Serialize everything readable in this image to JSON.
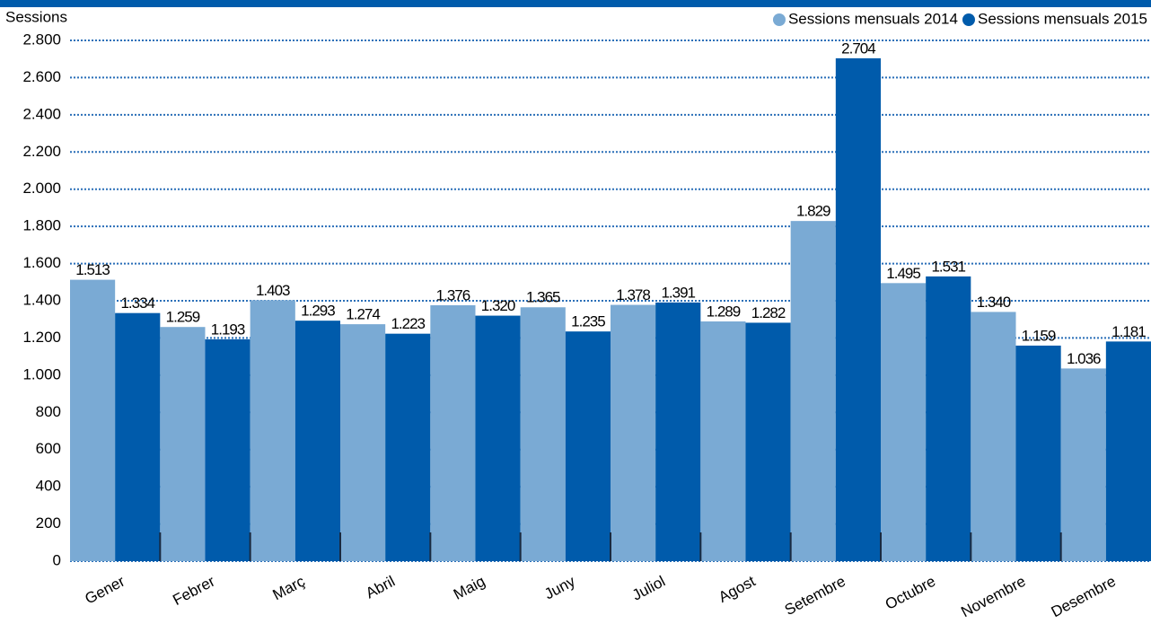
{
  "chart_data": {
    "type": "bar",
    "y_label": "Sessions",
    "categories": [
      "Gener",
      "Febrer",
      "Març",
      "Abril",
      "Maig",
      "Juny",
      "Juliol",
      "Agost",
      "Setembre",
      "Octubre",
      "Novembre",
      "Desembre"
    ],
    "series": [
      {
        "name": "Sessions mensuals 2014",
        "color": "#7aaad4",
        "values": [
          1513,
          1259,
          1403,
          1274,
          1376,
          1365,
          1378,
          1289,
          1829,
          1495,
          1340,
          1036
        ],
        "value_labels": [
          "1.513",
          "1.259",
          "1.403",
          "1.274",
          "1.376",
          "1.365",
          "1.378",
          "1.289",
          "1.829",
          "1.495",
          "1.340",
          "1.036"
        ]
      },
      {
        "name": "Sessions mensuals 2015",
        "color": "#005bab",
        "values": [
          1334,
          1193,
          1293,
          1223,
          1320,
          1235,
          1391,
          1282,
          2704,
          1531,
          1159,
          1181
        ],
        "value_labels": [
          "1.334",
          "1.193",
          "1.293",
          "1.223",
          "1.320",
          "1.235",
          "1.391",
          "1.282",
          "2.704",
          "1.531",
          "1.159",
          "1.181"
        ]
      }
    ],
    "ylim": [
      0,
      2800
    ],
    "yticks": [
      0,
      200,
      400,
      600,
      800,
      {
        "value": 1000,
        "label": "1.000"
      },
      {
        "value": 1200,
        "label": "1.200"
      },
      {
        "value": 1400,
        "label": "1.400"
      },
      {
        "value": 1600,
        "label": "1.600"
      },
      {
        "value": 1800,
        "label": "1.800"
      },
      {
        "value": 2000,
        "label": "2.000"
      },
      {
        "value": 2200,
        "label": "2.200"
      },
      {
        "value": 2400,
        "label": "2.400"
      },
      {
        "value": 2600,
        "label": "2.600"
      },
      {
        "value": 2800,
        "label": "2.800"
      }
    ],
    "grid": true,
    "legend": "top-right"
  }
}
